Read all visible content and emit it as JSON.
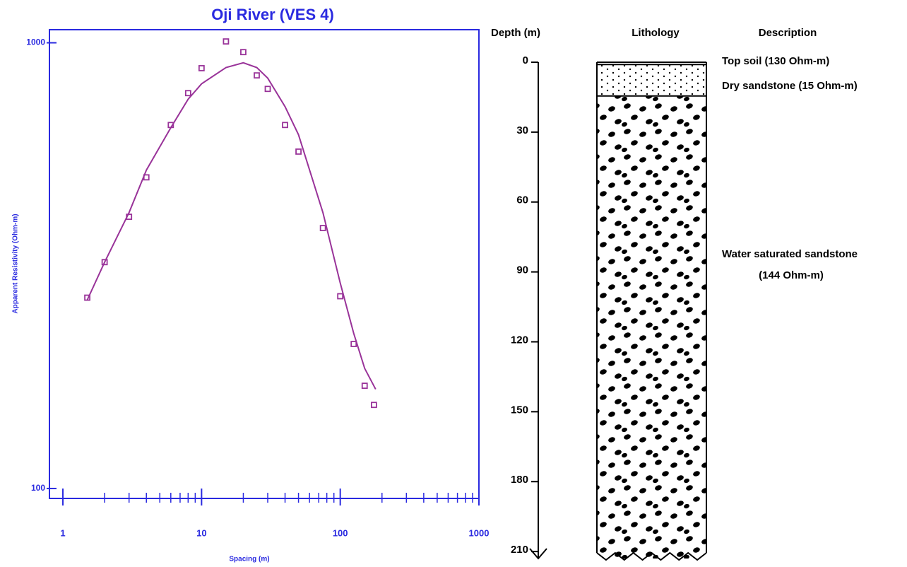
{
  "chart_data": [
    {
      "type": "scatter",
      "title": "Oji River (VES 4)",
      "x_label": "Spacing (m)",
      "y_label": "Apparent Resistivity (Ohm-m)",
      "xscale": "log",
      "yscale": "log",
      "xlim": [
        0.8,
        1000
      ],
      "ylim": [
        95,
        1070
      ],
      "xticks": [
        1,
        10,
        100,
        1000
      ],
      "yticks": [
        100,
        1000
      ],
      "xminorticks": [
        2,
        3,
        4,
        5,
        6,
        7,
        8,
        9,
        20,
        30,
        40,
        50,
        60,
        70,
        80,
        90,
        200,
        300,
        400,
        500,
        600,
        700,
        800,
        900
      ],
      "axis_color": "#2a2ae0",
      "series": [
        {
          "style": "markers",
          "color": "#993399",
          "x": [
            1.5,
            2,
            3,
            4,
            6,
            8,
            10,
            15,
            20,
            25,
            30,
            40,
            50,
            75,
            100,
            125,
            150,
            175
          ],
          "values": [
            268,
            322,
            407,
            499,
            654,
            771,
            877,
            1007,
            953,
            845,
            788,
            654,
            570,
            384,
            270,
            211,
            170,
            154
          ]
        },
        {
          "style": "line",
          "color": "#993399",
          "x": [
            1.5,
            2,
            3,
            4,
            6,
            8,
            10,
            15,
            20,
            25,
            30,
            40,
            50,
            75,
            100,
            125,
            150,
            180
          ],
          "values": [
            265,
            322,
            416,
            518,
            645,
            747,
            809,
            880,
            902,
            880,
            833,
            719,
            622,
            416,
            289,
            223,
            186,
            167
          ]
        }
      ]
    },
    {
      "type": "lithology",
      "headers": [
        "Depth (m)",
        "Lithology",
        "Description"
      ],
      "ylim": [
        0,
        213
      ],
      "yticks": [
        0,
        30,
        60,
        90,
        120,
        150,
        180,
        210
      ],
      "layers": [
        {
          "top": 0,
          "bottom": 1,
          "lines": [
            "Top soil (130 Ohm-m)"
          ]
        },
        {
          "top": 1,
          "bottom": 14.5,
          "lines": [
            "Dry sandstone (15 Ohm-m)"
          ]
        },
        {
          "top": 14.5,
          "bottom": 213,
          "lines": [
            "Water saturated sandstone",
            "(144 Ohm-m)"
          ]
        }
      ]
    }
  ]
}
